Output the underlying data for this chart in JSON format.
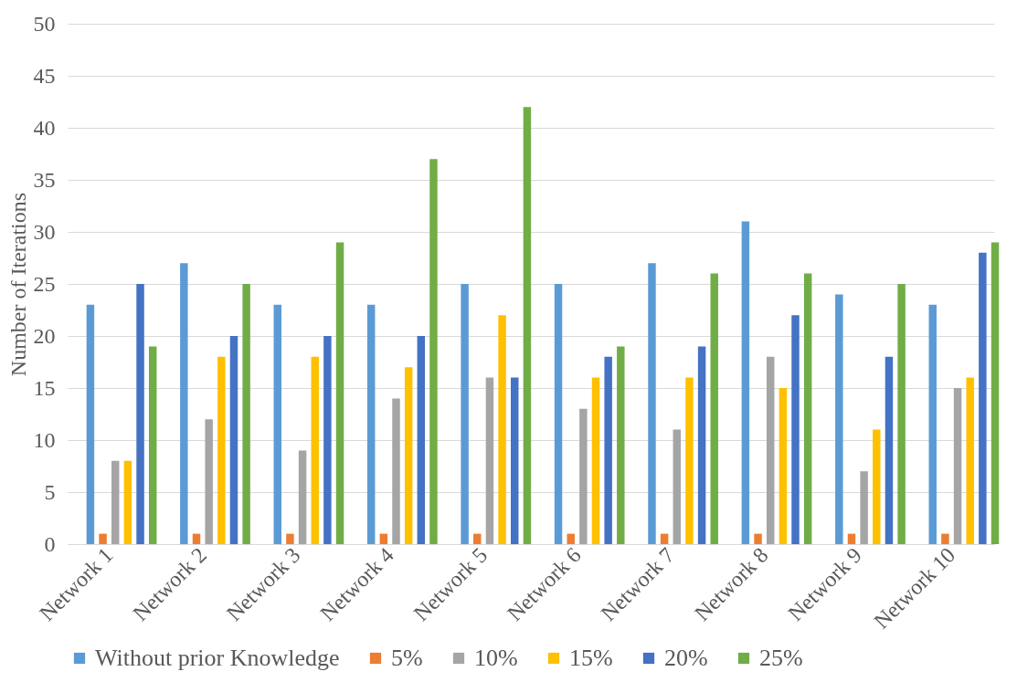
{
  "chart_data": {
    "type": "bar",
    "ylabel": "Number of Iterations",
    "categories": [
      "Network 1",
      "Network 2",
      "Network 3",
      "Network 4",
      "Network 5",
      "Network 6",
      "Network 7",
      "Network 8",
      "Network 9",
      "Network 10"
    ],
    "series": [
      {
        "name": "Without prior Knowledge",
        "color": "#5b9bd5",
        "values": [
          23,
          27,
          23,
          23,
          25,
          25,
          27,
          31,
          24,
          23
        ]
      },
      {
        "name": "5%",
        "color": "#ed7d31",
        "values": [
          1,
          1,
          1,
          1,
          1,
          1,
          1,
          1,
          1,
          1
        ]
      },
      {
        "name": "10%",
        "color": "#a5a5a5",
        "values": [
          8,
          12,
          9,
          14,
          16,
          13,
          11,
          18,
          7,
          15
        ]
      },
      {
        "name": "15%",
        "color": "#ffc000",
        "values": [
          8,
          18,
          18,
          17,
          22,
          16,
          16,
          15,
          11,
          16
        ]
      },
      {
        "name": "20%",
        "color": "#4472c4",
        "values": [
          25,
          20,
          20,
          20,
          16,
          18,
          19,
          22,
          18,
          28
        ]
      },
      {
        "name": "25%",
        "color": "#70ad47",
        "values": [
          19,
          25,
          29,
          37,
          42,
          19,
          26,
          26,
          25,
          29
        ]
      }
    ],
    "ylim": [
      0,
      50
    ],
    "yticks": [
      0,
      5,
      10,
      15,
      20,
      25,
      30,
      35,
      40,
      45,
      50
    ],
    "grid": "y",
    "legend": "bottom"
  }
}
